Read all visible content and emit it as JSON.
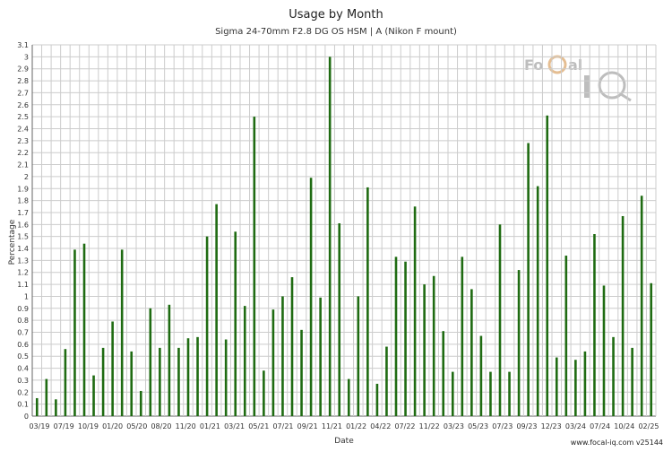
{
  "header": {
    "title": "Usage by Month",
    "subtitle": "Sigma 24-70mm F2.8 DG OS HSM | A (Nikon F mount)"
  },
  "logo": {
    "text": "Focal iQ"
  },
  "footer": {
    "text": "www.focal-iq.com  v25144"
  },
  "colors": {
    "bar": "#1f6b12",
    "grid": "#cccccc",
    "axis": "#666666"
  },
  "chart_data": {
    "type": "bar",
    "xlabel": "Date",
    "ylabel": "Percentage",
    "ylim": [
      0,
      3.1
    ],
    "yticks": [
      0,
      0.1,
      0.2,
      0.3,
      0.4,
      0.5,
      0.6,
      0.7,
      0.8,
      0.9,
      1,
      1.1,
      1.2,
      1.3,
      1.4,
      1.5,
      1.6,
      1.7,
      1.8,
      1.9,
      2,
      2.1,
      2.2,
      2.3,
      2.4,
      2.5,
      2.6,
      2.7,
      2.8,
      2.9,
      3,
      3.1
    ],
    "grid": true,
    "x_tick_labels": [
      "03/19",
      "07/19",
      "10/19",
      "01/20",
      "05/20",
      "08/20",
      "11/20",
      "01/21",
      "03/21",
      "05/21",
      "07/21",
      "09/21",
      "11/21",
      "01/22",
      "04/22",
      "07/22",
      "11/22",
      "03/23",
      "05/23",
      "07/23",
      "09/23",
      "12/23",
      "03/24",
      "07/24",
      "10/24",
      "02/25"
    ],
    "values": [
      0.15,
      0.31,
      0.14,
      0.56,
      1.39,
      1.44,
      0.34,
      0.57,
      0.79,
      1.39,
      0.54,
      0.21,
      0.9,
      0.57,
      0.93,
      0.57,
      0.65,
      0.66,
      1.5,
      1.77,
      0.64,
      1.54,
      0.92,
      2.5,
      0.38,
      0.89,
      1.0,
      1.16,
      0.72,
      1.99,
      0.99,
      3.0,
      1.61,
      0.31,
      1.0,
      1.91,
      0.27,
      0.58,
      1.33,
      1.29,
      1.75,
      1.1,
      1.17,
      0.71,
      0.37,
      1.33,
      1.06,
      0.67,
      0.37,
      1.6,
      0.37,
      1.22,
      2.28,
      1.92,
      2.51,
      0.49,
      1.34,
      0.47,
      0.54,
      1.52,
      1.09,
      0.66,
      1.67,
      0.57,
      1.84,
      1.11
    ]
  }
}
